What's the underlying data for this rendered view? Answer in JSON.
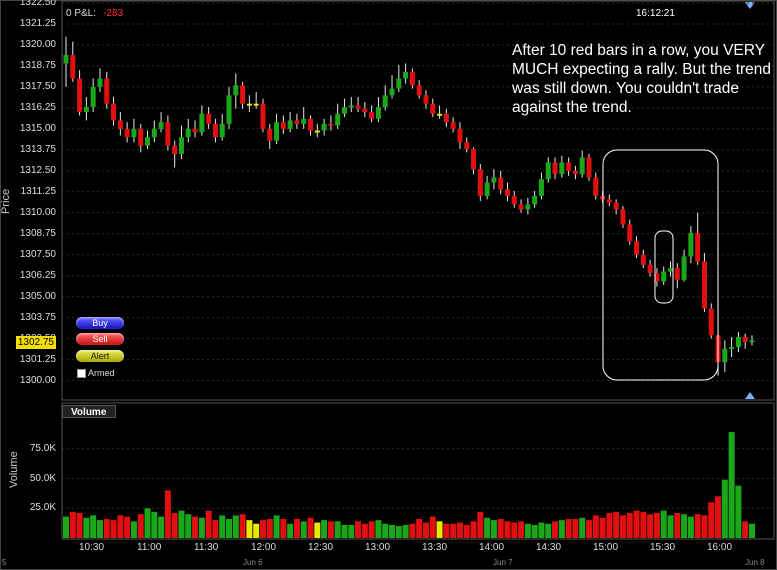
{
  "header": {
    "pnl_label": "0 P&L:",
    "pnl_value": "-283",
    "time": "16:12:21"
  },
  "price_panel": {
    "axis_title": "Price",
    "y_ticks": [
      "1322.50",
      "1321.25",
      "1320.00",
      "1318.75",
      "1317.50",
      "1316.25",
      "1315.00",
      "1313.75",
      "1312.50",
      "1311.25",
      "1310.00",
      "1308.75",
      "1307.50",
      "1306.25",
      "1305.00",
      "1303.75",
      "1302.50",
      "1301.25",
      "1300.00"
    ],
    "current_price": "1302.75",
    "buttons": {
      "buy": "Buy",
      "sell": "Sell",
      "alert": "Alert"
    },
    "armed_label": "Armed",
    "annotation": "After 10 red bars in a row, you VERY MUCH expecting a rally.  But the trend was still down.  You couldn't trade against the trend."
  },
  "volume_panel": {
    "tab_label": "Volume",
    "axis_title": "Volume",
    "y_ticks": [
      "75.0K",
      "50.0K",
      "25.0K"
    ]
  },
  "x_axis": {
    "time_labels": [
      "10:30",
      "11:00",
      "11:30",
      "12:00",
      "12:30",
      "13:00",
      "13:30",
      "14:00",
      "14:30",
      "15:00",
      "15:30",
      "16:00"
    ],
    "date_labels": [
      "Jun 6",
      "Jun 7",
      "Jun 8"
    ],
    "left_edge_label": "5"
  },
  "colors": {
    "up": "#1aa81a",
    "down": "#e01010",
    "doji": "#e8e800",
    "pnl": "#ff3030",
    "buy": "#2020e0",
    "sell": "#e02020",
    "alert": "#c8c800"
  },
  "chart_data": [
    {
      "type": "candlestick",
      "title": "",
      "ylabel": "Price",
      "ylim": [
        1299.5,
        1322.5
      ],
      "open": [
        1318.9,
        1319.4,
        1318.0,
        1316.0,
        1316.3,
        1317.5,
        1318.0,
        1316.5,
        1315.5,
        1315.0,
        1314.5,
        1315.0,
        1314.0,
        1314.5,
        1315.0,
        1315.4,
        1314.0,
        1313.5,
        1314.5,
        1315.0,
        1314.8,
        1315.9,
        1315.3,
        1314.5,
        1315.3,
        1317.0,
        1317.6,
        1316.5,
        1316.5,
        1316.5,
        1315.0,
        1314.3,
        1315.4,
        1315.0,
        1315.5,
        1315.3,
        1315.6,
        1314.9,
        1314.9,
        1315.3,
        1315.2,
        1315.9,
        1316.3,
        1316.4,
        1316.2,
        1316.0,
        1315.6,
        1316.3,
        1317.0,
        1317.4,
        1318.0,
        1318.4,
        1317.6,
        1317.0,
        1316.5,
        1315.9,
        1315.9,
        1315.4,
        1315.0,
        1314.2,
        1313.8,
        1312.6,
        1311.0,
        1311.8,
        1312.1,
        1311.4,
        1311.0,
        1310.5,
        1310.2,
        1310.5,
        1311.0,
        1312.0,
        1313.0,
        1312.3,
        1313.0,
        1312.5,
        1312.3,
        1313.3,
        1312.1,
        1311.0,
        1310.8,
        1310.6,
        1310.2,
        1309.3,
        1308.3,
        1307.5,
        1306.9,
        1306.4,
        1305.9,
        1306.5,
        1306.7,
        1306.0,
        1307.4,
        1308.8,
        1307.1,
        1304.3,
        1302.7,
        1301.1,
        1301.9,
        1302.0,
        1302.6,
        1302.3
      ],
      "close": [
        1319.4,
        1318.0,
        1316.0,
        1316.3,
        1317.5,
        1318.0,
        1316.5,
        1315.5,
        1315.0,
        1314.5,
        1315.0,
        1314.0,
        1314.5,
        1315.0,
        1315.4,
        1314.0,
        1313.5,
        1314.5,
        1315.0,
        1314.8,
        1315.9,
        1315.3,
        1314.5,
        1315.3,
        1317.0,
        1317.6,
        1316.5,
        1316.5,
        1316.5,
        1315.0,
        1314.3,
        1315.4,
        1315.0,
        1315.5,
        1315.3,
        1315.6,
        1314.9,
        1314.9,
        1315.3,
        1315.2,
        1315.9,
        1316.3,
        1316.4,
        1316.2,
        1316.0,
        1315.6,
        1316.3,
        1317.0,
        1317.4,
        1318.0,
        1318.4,
        1317.6,
        1317.0,
        1316.5,
        1315.9,
        1315.9,
        1315.4,
        1315.0,
        1314.2,
        1313.8,
        1312.6,
        1311.0,
        1311.8,
        1312.1,
        1311.4,
        1311.0,
        1310.5,
        1310.2,
        1310.5,
        1311.0,
        1312.0,
        1313.0,
        1312.3,
        1313.0,
        1312.5,
        1312.3,
        1313.3,
        1312.1,
        1311.0,
        1310.8,
        1310.6,
        1310.2,
        1309.3,
        1308.3,
        1307.5,
        1306.9,
        1306.4,
        1305.9,
        1306.5,
        1306.7,
        1306.0,
        1307.4,
        1308.8,
        1307.1,
        1304.3,
        1302.7,
        1301.1,
        1301.9,
        1302.0,
        1302.6,
        1302.3,
        1302.4
      ],
      "high": [
        1320.5,
        1320.2,
        1318.5,
        1316.9,
        1318.0,
        1318.6,
        1318.4,
        1316.9,
        1316.0,
        1315.4,
        1315.6,
        1315.3,
        1314.9,
        1315.5,
        1316.0,
        1315.8,
        1314.3,
        1315.2,
        1315.6,
        1315.5,
        1316.4,
        1316.3,
        1315.6,
        1315.9,
        1317.5,
        1318.3,
        1317.8,
        1317.0,
        1317.2,
        1316.8,
        1315.3,
        1315.9,
        1315.8,
        1316.0,
        1315.9,
        1316.3,
        1315.8,
        1315.3,
        1315.6,
        1315.8,
        1316.5,
        1316.8,
        1316.9,
        1316.9,
        1316.6,
        1316.4,
        1316.9,
        1317.6,
        1318.2,
        1318.8,
        1318.9,
        1318.6,
        1317.9,
        1317.3,
        1316.8,
        1316.4,
        1316.2,
        1315.7,
        1315.4,
        1314.5,
        1313.9,
        1312.9,
        1312.2,
        1312.6,
        1312.5,
        1311.8,
        1311.3,
        1310.8,
        1310.9,
        1311.3,
        1312.4,
        1313.3,
        1313.3,
        1313.4,
        1313.3,
        1312.8,
        1313.7,
        1313.5,
        1312.4,
        1311.3,
        1311.1,
        1310.8,
        1310.4,
        1309.6,
        1308.6,
        1307.8,
        1307.2,
        1306.7,
        1306.8,
        1307.1,
        1307.0,
        1307.8,
        1309.2,
        1310.0,
        1307.6,
        1304.6,
        1302.9,
        1302.4,
        1302.6,
        1302.9,
        1302.8,
        1302.7
      ],
      "low": [
        1317.5,
        1317.8,
        1315.8,
        1315.5,
        1316.0,
        1317.2,
        1316.2,
        1315.2,
        1314.6,
        1314.2,
        1314.2,
        1313.6,
        1313.8,
        1314.2,
        1314.8,
        1313.7,
        1312.7,
        1313.2,
        1314.2,
        1314.5,
        1314.6,
        1315.0,
        1314.2,
        1314.3,
        1315.0,
        1316.2,
        1316.2,
        1316.0,
        1316.2,
        1314.8,
        1313.8,
        1314.1,
        1314.7,
        1314.8,
        1315.0,
        1315.0,
        1314.6,
        1314.5,
        1314.6,
        1314.9,
        1315.0,
        1315.7,
        1316.0,
        1316.0,
        1315.7,
        1315.4,
        1315.4,
        1316.1,
        1316.8,
        1317.2,
        1317.7,
        1317.4,
        1316.8,
        1316.2,
        1315.7,
        1315.6,
        1315.1,
        1314.8,
        1313.8,
        1313.6,
        1312.3,
        1310.7,
        1310.8,
        1311.4,
        1311.1,
        1310.7,
        1310.3,
        1310.0,
        1309.9,
        1310.3,
        1310.8,
        1311.8,
        1312.0,
        1312.1,
        1312.2,
        1312.0,
        1312.1,
        1311.9,
        1310.8,
        1310.6,
        1310.4,
        1309.9,
        1309.1,
        1308.1,
        1307.3,
        1306.7,
        1306.2,
        1305.6,
        1305.7,
        1306.2,
        1305.5,
        1305.9,
        1307.0,
        1306.9,
        1304.1,
        1302.5,
        1300.3,
        1300.5,
        1301.4,
        1301.7,
        1301.9,
        1302.1
      ]
    },
    {
      "type": "bar",
      "title": "",
      "ylabel": "Volume",
      "ylim": [
        0,
        100000
      ],
      "values": [
        18000,
        22000,
        21000,
        17000,
        19000,
        15000,
        16000,
        15000,
        19000,
        18000,
        14000,
        20000,
        25000,
        22000,
        18000,
        40000,
        21000,
        23000,
        20000,
        18000,
        17000,
        23000,
        15000,
        19000,
        16000,
        19000,
        20000,
        15000,
        12000,
        15000,
        16000,
        19000,
        16000,
        12000,
        16000,
        14000,
        17000,
        13000,
        15000,
        14000,
        14000,
        11000,
        11000,
        14000,
        12000,
        14000,
        15000,
        12000,
        11000,
        10000,
        11000,
        12000,
        16000,
        13000,
        18000,
        14000,
        12000,
        12000,
        13000,
        11000,
        14000,
        22000,
        17000,
        15000,
        16000,
        14000,
        13000,
        14000,
        12000,
        11000,
        13000,
        12000,
        14000,
        15000,
        16000,
        16000,
        17000,
        15000,
        19000,
        17000,
        21000,
        22000,
        19000,
        21000,
        23000,
        22000,
        20000,
        21000,
        23000,
        19000,
        21000,
        20000,
        18000,
        20000,
        19000,
        30000,
        35000,
        49000,
        89000,
        44000,
        14000,
        12000
      ],
      "colors_per_bar": "matches candle direction"
    }
  ]
}
